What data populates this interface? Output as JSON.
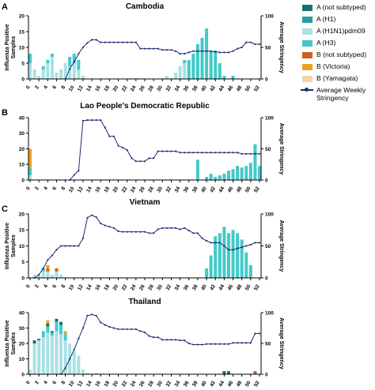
{
  "panels_letters": [
    "A",
    "B",
    "C"
  ],
  "legend": [
    {
      "label": "A (not subtyped)",
      "color": "#1b6e72",
      "kind": "box"
    },
    {
      "label": "A (H1)",
      "color": "#2a9da3",
      "kind": "box"
    },
    {
      "label": "A (H1N1)pdm09",
      "color": "#a8e2e3",
      "kind": "box"
    },
    {
      "label": "A (H3)",
      "color": "#43c9c9",
      "kind": "box"
    },
    {
      "label": "B (not subtyped)",
      "color": "#c9621c",
      "kind": "box"
    },
    {
      "label": "B (Victoria)",
      "color": "#f0a21e",
      "kind": "box"
    },
    {
      "label": "B (Yamagata)",
      "color": "#f5d3a6",
      "kind": "box"
    },
    {
      "label": "Average Weekly Stringency",
      "color": "#1f2d74",
      "kind": "line"
    }
  ],
  "chart_data": [
    {
      "type": "bar",
      "title": "Cambodia",
      "ylabel": "Influenza Positive Samples",
      "y2label": "Average Stringency",
      "ylim": [
        0,
        20
      ],
      "yticks": [
        0,
        5,
        10,
        15,
        20
      ],
      "y2lim": [
        0,
        100
      ],
      "y2ticks": [
        0,
        50,
        100
      ],
      "xticks": [
        0,
        2,
        4,
        6,
        8,
        10,
        12,
        14,
        16,
        18,
        20,
        22,
        24,
        26,
        28,
        30,
        32,
        34,
        36,
        38,
        40,
        42,
        44,
        46,
        48,
        50,
        52
      ],
      "bars": {
        "H1N1pdm09": [
          [
            0,
            5
          ],
          [
            1,
            3
          ],
          [
            2,
            1
          ],
          [
            3,
            3
          ],
          [
            4,
            5
          ],
          [
            5,
            7
          ],
          [
            6,
            2
          ],
          [
            7,
            3
          ],
          [
            8,
            5
          ],
          [
            9,
            4
          ],
          [
            10,
            5
          ],
          [
            11,
            3
          ],
          [
            12,
            1
          ],
          [
            13,
            0
          ],
          [
            31,
            1
          ],
          [
            33,
            2
          ],
          [
            34,
            4
          ],
          [
            35,
            5
          ]
        ],
        "H3": [
          [
            0,
            3
          ],
          [
            3,
            1
          ],
          [
            4,
            1
          ],
          [
            5,
            1
          ],
          [
            9,
            3
          ],
          [
            10,
            3
          ],
          [
            11,
            3
          ],
          [
            35,
            1
          ],
          [
            36,
            6
          ],
          [
            37,
            8
          ],
          [
            38,
            11
          ],
          [
            39,
            13
          ],
          [
            40,
            16
          ],
          [
            41,
            9
          ],
          [
            42,
            9
          ],
          [
            43,
            5
          ],
          [
            44,
            1
          ],
          [
            46,
            1
          ]
        ]
      },
      "stringency": [
        [
          8,
          0
        ],
        [
          9,
          16
        ],
        [
          10,
          27
        ],
        [
          11,
          40
        ],
        [
          12,
          50
        ],
        [
          13,
          57
        ],
        [
          14,
          62
        ],
        [
          15,
          62
        ],
        [
          16,
          58
        ],
        [
          17,
          58
        ],
        [
          18,
          58
        ],
        [
          19,
          58
        ],
        [
          20,
          58
        ],
        [
          21,
          58
        ],
        [
          22,
          58
        ],
        [
          23,
          58
        ],
        [
          24,
          58
        ],
        [
          25,
          48
        ],
        [
          26,
          48
        ],
        [
          27,
          48
        ],
        [
          28,
          48
        ],
        [
          29,
          48
        ],
        [
          30,
          46
        ],
        [
          31,
          46
        ],
        [
          32,
          46
        ],
        [
          33,
          44
        ],
        [
          34,
          40
        ],
        [
          35,
          40
        ],
        [
          36,
          42
        ],
        [
          37,
          44
        ],
        [
          38,
          44
        ],
        [
          39,
          44
        ],
        [
          40,
          44
        ],
        [
          41,
          44
        ],
        [
          42,
          43
        ],
        [
          43,
          42
        ],
        [
          44,
          42
        ],
        [
          45,
          42
        ],
        [
          46,
          44
        ],
        [
          47,
          48
        ],
        [
          48,
          50
        ],
        [
          49,
          58
        ],
        [
          50,
          58
        ],
        [
          51,
          55
        ],
        [
          52,
          55
        ]
      ]
    },
    {
      "type": "bar",
      "title": "Lao People's Democratic Republic",
      "ylabel": "",
      "y2label": "Average Stringency",
      "ylim": [
        0,
        40
      ],
      "yticks": [
        0,
        10,
        20,
        30,
        40
      ],
      "y2lim": [
        0,
        100
      ],
      "y2ticks": [
        0,
        50,
        100
      ],
      "xticks": [
        0,
        2,
        4,
        6,
        8,
        10,
        12,
        14,
        16,
        18,
        20,
        22,
        24,
        26,
        28,
        30,
        32,
        34,
        36,
        38,
        40,
        42,
        44,
        46,
        48,
        50,
        52
      ],
      "bars": {
        "H1N1pdm09": [
          [
            0,
            3
          ]
        ],
        "H3": [
          [
            0,
            5
          ],
          [
            38,
            13
          ],
          [
            40,
            2
          ],
          [
            41,
            4
          ],
          [
            42,
            2
          ],
          [
            43,
            3
          ],
          [
            44,
            4
          ],
          [
            45,
            6
          ],
          [
            46,
            7
          ],
          [
            47,
            9
          ],
          [
            48,
            8
          ],
          [
            49,
            9
          ],
          [
            50,
            11
          ],
          [
            51,
            23
          ],
          [
            52,
            9
          ]
        ],
        "B_Victoria": [
          [
            0,
            12
          ]
        ]
      },
      "stringency": [
        [
          8,
          0
        ],
        [
          9,
          0
        ],
        [
          10,
          8
        ],
        [
          11,
          15
        ],
        [
          12,
          95
        ],
        [
          13,
          96
        ],
        [
          14,
          96
        ],
        [
          15,
          96
        ],
        [
          16,
          96
        ],
        [
          17,
          84
        ],
        [
          18,
          70
        ],
        [
          19,
          70
        ],
        [
          20,
          55
        ],
        [
          21,
          52
        ],
        [
          22,
          48
        ],
        [
          23,
          35
        ],
        [
          24,
          30
        ],
        [
          25,
          30
        ],
        [
          26,
          30
        ],
        [
          27,
          35
        ],
        [
          28,
          35
        ],
        [
          29,
          46
        ],
        [
          30,
          46
        ],
        [
          31,
          46
        ],
        [
          32,
          46
        ],
        [
          33,
          46
        ],
        [
          34,
          44
        ],
        [
          35,
          44
        ],
        [
          36,
          44
        ],
        [
          37,
          44
        ],
        [
          38,
          44
        ],
        [
          39,
          44
        ],
        [
          40,
          44
        ],
        [
          41,
          44
        ],
        [
          42,
          44
        ],
        [
          43,
          44
        ],
        [
          44,
          44
        ],
        [
          45,
          44
        ],
        [
          46,
          44
        ],
        [
          47,
          44
        ],
        [
          48,
          42
        ],
        [
          49,
          42
        ],
        [
          50,
          42
        ],
        [
          51,
          42
        ],
        [
          52,
          42
        ]
      ]
    },
    {
      "type": "bar",
      "title": "Vietnam",
      "ylabel": "",
      "y2label": "Average Stringency",
      "ylim": [
        0,
        20
      ],
      "yticks": [
        0,
        5,
        10,
        15,
        20
      ],
      "y2lim": [
        0,
        100
      ],
      "y2ticks": [
        0,
        50,
        100
      ],
      "xticks": [
        0,
        2,
        4,
        6,
        8,
        10,
        12,
        14,
        16,
        18,
        20,
        22,
        24,
        26,
        28,
        30,
        32,
        34,
        36,
        38,
        40,
        42,
        44,
        46,
        48,
        50,
        52
      ],
      "bars": {
        "H1N1pdm09": [
          [
            1,
            1
          ],
          [
            2,
            1
          ],
          [
            3,
            2
          ],
          [
            4,
            2
          ],
          [
            5,
            1
          ],
          [
            6,
            2
          ],
          [
            7,
            1
          ]
        ],
        "H3": [
          [
            3,
            1
          ],
          [
            40,
            3
          ],
          [
            41,
            7
          ],
          [
            42,
            13
          ],
          [
            43,
            14
          ],
          [
            44,
            16
          ],
          [
            45,
            14
          ],
          [
            46,
            15
          ],
          [
            47,
            14
          ],
          [
            48,
            12
          ],
          [
            49,
            8
          ],
          [
            50,
            4
          ]
        ],
        "B_not_subtyped": [
          [
            4,
            1
          ],
          [
            6,
            1
          ]
        ],
        "B_Victoria": [
          [
            4,
            1
          ]
        ]
      },
      "stringency": [
        [
          1,
          0
        ],
        [
          2,
          5
        ],
        [
          3,
          15
        ],
        [
          4,
          28
        ],
        [
          5,
          35
        ],
        [
          6,
          44
        ],
        [
          7,
          50
        ],
        [
          8,
          50
        ],
        [
          9,
          50
        ],
        [
          10,
          50
        ],
        [
          11,
          50
        ],
        [
          12,
          62
        ],
        [
          13,
          94
        ],
        [
          14,
          98
        ],
        [
          15,
          95
        ],
        [
          16,
          85
        ],
        [
          17,
          82
        ],
        [
          18,
          80
        ],
        [
          19,
          78
        ],
        [
          20,
          73
        ],
        [
          21,
          72
        ],
        [
          22,
          72
        ],
        [
          23,
          72
        ],
        [
          24,
          72
        ],
        [
          25,
          72
        ],
        [
          26,
          72
        ],
        [
          27,
          70
        ],
        [
          28,
          70
        ],
        [
          29,
          76
        ],
        [
          30,
          78
        ],
        [
          31,
          78
        ],
        [
          32,
          78
        ],
        [
          33,
          78
        ],
        [
          34,
          76
        ],
        [
          35,
          78
        ],
        [
          36,
          74
        ],
        [
          37,
          70
        ],
        [
          38,
          70
        ],
        [
          39,
          62
        ],
        [
          40,
          58
        ],
        [
          41,
          55
        ],
        [
          42,
          55
        ],
        [
          43,
          55
        ],
        [
          44,
          50
        ],
        [
          45,
          44
        ],
        [
          46,
          44
        ],
        [
          47,
          46
        ],
        [
          48,
          48
        ],
        [
          49,
          50
        ],
        [
          50,
          52
        ],
        [
          51,
          55
        ],
        [
          52,
          55
        ]
      ]
    },
    {
      "type": "bar",
      "title": "Thailand",
      "ylabel": "",
      "y2label": "Average Stringency",
      "ylim": [
        0,
        40
      ],
      "yticks": [
        0,
        10,
        20,
        30,
        40
      ],
      "y2lim": [
        0,
        100
      ],
      "y2ticks": [
        0,
        50,
        100
      ],
      "xticks": [
        0,
        2,
        4,
        6,
        8,
        10,
        12,
        14,
        16,
        18,
        20,
        22,
        24,
        26,
        28,
        30,
        32,
        34,
        36,
        38,
        40,
        42,
        44,
        46,
        48,
        50,
        52
      ],
      "bars": {
        "H1N1pdm09": [
          [
            0,
            3
          ],
          [
            1,
            20
          ],
          [
            2,
            22
          ],
          [
            3,
            24
          ],
          [
            4,
            27
          ],
          [
            5,
            25
          ],
          [
            6,
            28
          ],
          [
            7,
            26
          ],
          [
            8,
            22
          ],
          [
            9,
            20
          ],
          [
            10,
            15
          ],
          [
            11,
            12
          ],
          [
            12,
            3
          ],
          [
            13,
            1
          ],
          [
            15,
            1
          ]
        ],
        "H3": [
          [
            3,
            4
          ],
          [
            4,
            4
          ],
          [
            5,
            2
          ],
          [
            6,
            6
          ],
          [
            7,
            6
          ],
          [
            8,
            4
          ]
        ],
        "not_subtyped": [
          [
            1,
            2
          ],
          [
            2,
            1
          ],
          [
            4,
            2
          ],
          [
            5,
            1
          ],
          [
            6,
            2
          ],
          [
            7,
            2
          ],
          [
            44,
            2
          ],
          [
            45,
            2
          ]
        ],
        "B_Victoria": [
          [
            4,
            2
          ],
          [
            8,
            2
          ]
        ],
        "B_not_subtyped": [
          [
            51,
            2
          ]
        ]
      },
      "stringency": [
        [
          7,
          0
        ],
        [
          8,
          10
        ],
        [
          9,
          25
        ],
        [
          10,
          40
        ],
        [
          11,
          58
        ],
        [
          12,
          75
        ],
        [
          13,
          95
        ],
        [
          14,
          97
        ],
        [
          15,
          95
        ],
        [
          16,
          84
        ],
        [
          17,
          80
        ],
        [
          18,
          77
        ],
        [
          19,
          75
        ],
        [
          20,
          73
        ],
        [
          21,
          73
        ],
        [
          22,
          73
        ],
        [
          23,
          73
        ],
        [
          24,
          73
        ],
        [
          25,
          70
        ],
        [
          26,
          68
        ],
        [
          27,
          62
        ],
        [
          28,
          60
        ],
        [
          29,
          60
        ],
        [
          30,
          56
        ],
        [
          31,
          56
        ],
        [
          32,
          56
        ],
        [
          33,
          56
        ],
        [
          34,
          55
        ],
        [
          35,
          55
        ],
        [
          36,
          50
        ],
        [
          37,
          48
        ],
        [
          38,
          48
        ],
        [
          39,
          48
        ],
        [
          40,
          49
        ],
        [
          41,
          49
        ],
        [
          42,
          49
        ],
        [
          43,
          49
        ],
        [
          44,
          49
        ],
        [
          45,
          49
        ],
        [
          46,
          51
        ],
        [
          47,
          51
        ],
        [
          48,
          51
        ],
        [
          49,
          51
        ],
        [
          50,
          51
        ],
        [
          51,
          66
        ],
        [
          52,
          66
        ]
      ]
    }
  ]
}
